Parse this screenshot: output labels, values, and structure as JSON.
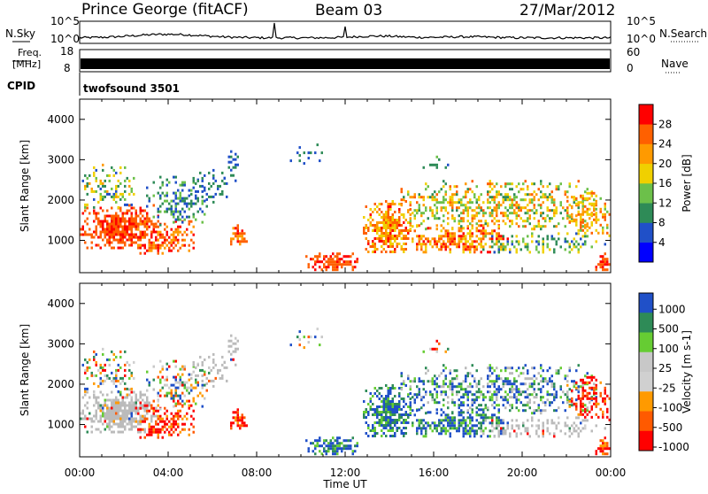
{
  "header": {
    "station": "Prince George (fitACF)",
    "beam": "Beam 03",
    "date": "27/Mar/2012"
  },
  "side_labels": {
    "nsky": "N.Sky",
    "freq": "Freq.",
    "mhz": "[MHz]",
    "cpid": "CPID",
    "nsearch": "N.Search",
    "nave": "Nave"
  },
  "cpid_name": "twofsound 3501",
  "colors": {
    "power_scale": [
      "#0000ff",
      "#2050c8",
      "#2e8b57",
      "#6cc04a",
      "#f0d000",
      "#ff9a00",
      "#ff6000",
      "#ff0000"
    ],
    "velocity_scale": [
      "#ff0000",
      "#ff5a00",
      "#ff9a00",
      "#d0d0d0",
      "#c8c8c8",
      "#66cc33",
      "#2e8b57",
      "#2050c8"
    ],
    "ground_scatter": "#bbbbbb"
  },
  "chart_data": [
    {
      "type": "line",
      "panel": "noise",
      "left_ylabel": "N.Sky",
      "right_ylabel": "N.Search",
      "left_ticks": [
        "10^5",
        "10^0"
      ],
      "right_ticks": [
        "10^5",
        "10^0"
      ]
    },
    {
      "type": "bar",
      "panel": "frequency",
      "left_ylabel": "Freq. [MHz]",
      "right_ylabel": "Nave",
      "left_ticks": [
        "18",
        "8"
      ],
      "right_ticks": [
        "60",
        "0"
      ]
    },
    {
      "type": "heatmap",
      "panel": "power",
      "ylabel": "Slant Range [km]",
      "yticks": [
        "1000",
        "2000",
        "3000",
        "4000"
      ],
      "ylim": [
        200,
        4500
      ],
      "xlim_hours": [
        0,
        24
      ],
      "colorbar_label": "Power [dB]",
      "colorbar_ticks": [
        "4",
        "8",
        "12",
        "16",
        "20",
        "24",
        "28"
      ],
      "clim": [
        0,
        32
      ]
    },
    {
      "type": "heatmap",
      "panel": "velocity",
      "ylabel": "Slant Range [km]",
      "yticks": [
        "1000",
        "2000",
        "3000",
        "4000"
      ],
      "ylim": [
        200,
        4500
      ],
      "xlim_hours": [
        0,
        24
      ],
      "colorbar_label": "Velocity [m s-1]",
      "colorbar_ticks": [
        "1000",
        "500",
        "100",
        "25",
        "-25",
        "-100",
        "-500",
        "-1000"
      ]
    }
  ],
  "x_axis": {
    "ticks": [
      "00:00",
      "04:00",
      "08:00",
      "12:00",
      "16:00",
      "20:00",
      "00:00"
    ],
    "label": "Time UT"
  }
}
